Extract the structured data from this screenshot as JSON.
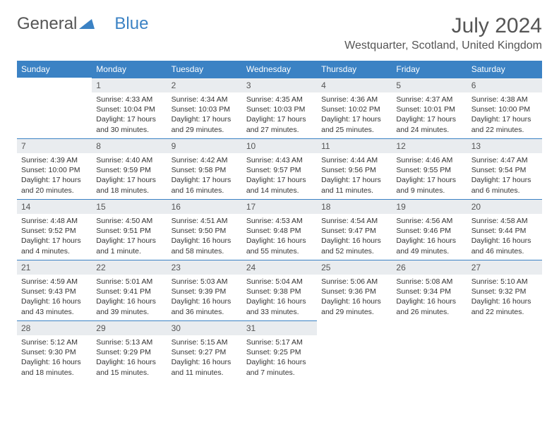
{
  "brand": {
    "part1": "General",
    "part2": "Blue"
  },
  "title": "July 2024",
  "location": "Westquarter, Scotland, United Kingdom",
  "colors": {
    "header_bg": "#3b82c4",
    "header_fg": "#ffffff",
    "daynum_bg": "#e9ecef",
    "text": "#333333"
  },
  "day_headers": [
    "Sunday",
    "Monday",
    "Tuesday",
    "Wednesday",
    "Thursday",
    "Friday",
    "Saturday"
  ],
  "weeks": [
    [
      null,
      {
        "n": "1",
        "sr": "4:33 AM",
        "ss": "10:04 PM",
        "dl": "17 hours and 30 minutes."
      },
      {
        "n": "2",
        "sr": "4:34 AM",
        "ss": "10:03 PM",
        "dl": "17 hours and 29 minutes."
      },
      {
        "n": "3",
        "sr": "4:35 AM",
        "ss": "10:03 PM",
        "dl": "17 hours and 27 minutes."
      },
      {
        "n": "4",
        "sr": "4:36 AM",
        "ss": "10:02 PM",
        "dl": "17 hours and 25 minutes."
      },
      {
        "n": "5",
        "sr": "4:37 AM",
        "ss": "10:01 PM",
        "dl": "17 hours and 24 minutes."
      },
      {
        "n": "6",
        "sr": "4:38 AM",
        "ss": "10:00 PM",
        "dl": "17 hours and 22 minutes."
      }
    ],
    [
      {
        "n": "7",
        "sr": "4:39 AM",
        "ss": "10:00 PM",
        "dl": "17 hours and 20 minutes."
      },
      {
        "n": "8",
        "sr": "4:40 AM",
        "ss": "9:59 PM",
        "dl": "17 hours and 18 minutes."
      },
      {
        "n": "9",
        "sr": "4:42 AM",
        "ss": "9:58 PM",
        "dl": "17 hours and 16 minutes."
      },
      {
        "n": "10",
        "sr": "4:43 AM",
        "ss": "9:57 PM",
        "dl": "17 hours and 14 minutes."
      },
      {
        "n": "11",
        "sr": "4:44 AM",
        "ss": "9:56 PM",
        "dl": "17 hours and 11 minutes."
      },
      {
        "n": "12",
        "sr": "4:46 AM",
        "ss": "9:55 PM",
        "dl": "17 hours and 9 minutes."
      },
      {
        "n": "13",
        "sr": "4:47 AM",
        "ss": "9:54 PM",
        "dl": "17 hours and 6 minutes."
      }
    ],
    [
      {
        "n": "14",
        "sr": "4:48 AM",
        "ss": "9:52 PM",
        "dl": "17 hours and 4 minutes."
      },
      {
        "n": "15",
        "sr": "4:50 AM",
        "ss": "9:51 PM",
        "dl": "17 hours and 1 minute."
      },
      {
        "n": "16",
        "sr": "4:51 AM",
        "ss": "9:50 PM",
        "dl": "16 hours and 58 minutes."
      },
      {
        "n": "17",
        "sr": "4:53 AM",
        "ss": "9:48 PM",
        "dl": "16 hours and 55 minutes."
      },
      {
        "n": "18",
        "sr": "4:54 AM",
        "ss": "9:47 PM",
        "dl": "16 hours and 52 minutes."
      },
      {
        "n": "19",
        "sr": "4:56 AM",
        "ss": "9:46 PM",
        "dl": "16 hours and 49 minutes."
      },
      {
        "n": "20",
        "sr": "4:58 AM",
        "ss": "9:44 PM",
        "dl": "16 hours and 46 minutes."
      }
    ],
    [
      {
        "n": "21",
        "sr": "4:59 AM",
        "ss": "9:43 PM",
        "dl": "16 hours and 43 minutes."
      },
      {
        "n": "22",
        "sr": "5:01 AM",
        "ss": "9:41 PM",
        "dl": "16 hours and 39 minutes."
      },
      {
        "n": "23",
        "sr": "5:03 AM",
        "ss": "9:39 PM",
        "dl": "16 hours and 36 minutes."
      },
      {
        "n": "24",
        "sr": "5:04 AM",
        "ss": "9:38 PM",
        "dl": "16 hours and 33 minutes."
      },
      {
        "n": "25",
        "sr": "5:06 AM",
        "ss": "9:36 PM",
        "dl": "16 hours and 29 minutes."
      },
      {
        "n": "26",
        "sr": "5:08 AM",
        "ss": "9:34 PM",
        "dl": "16 hours and 26 minutes."
      },
      {
        "n": "27",
        "sr": "5:10 AM",
        "ss": "9:32 PM",
        "dl": "16 hours and 22 minutes."
      }
    ],
    [
      {
        "n": "28",
        "sr": "5:12 AM",
        "ss": "9:30 PM",
        "dl": "16 hours and 18 minutes."
      },
      {
        "n": "29",
        "sr": "5:13 AM",
        "ss": "9:29 PM",
        "dl": "16 hours and 15 minutes."
      },
      {
        "n": "30",
        "sr": "5:15 AM",
        "ss": "9:27 PM",
        "dl": "16 hours and 11 minutes."
      },
      {
        "n": "31",
        "sr": "5:17 AM",
        "ss": "9:25 PM",
        "dl": "16 hours and 7 minutes."
      },
      null,
      null,
      null
    ]
  ],
  "labels": {
    "sunrise": "Sunrise:",
    "sunset": "Sunset:",
    "daylight": "Daylight:"
  }
}
